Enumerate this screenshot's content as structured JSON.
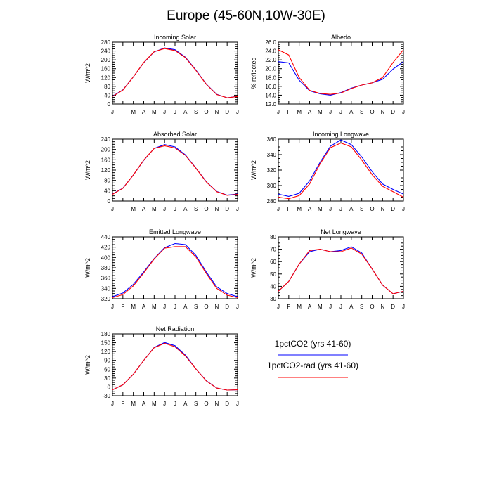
{
  "title": "Europe (45-60N,10W-30E)",
  "months": [
    "J",
    "F",
    "M",
    "A",
    "M",
    "J",
    "J",
    "A",
    "S",
    "O",
    "N",
    "D",
    "J"
  ],
  "legend": [
    {
      "label": "1pctCO2 (yrs 41-60)",
      "color": "#0000ff"
    },
    {
      "label": "1pctCO2-rad (yrs 41-60)",
      "color": "#ff0000"
    }
  ],
  "chart_data": [
    {
      "type": "line",
      "title": "Incoming Solar",
      "ylabel": "W/m^2",
      "ylim": [
        0,
        280
      ],
      "yticks": [
        "0",
        "40",
        "80",
        "120",
        "160",
        "200",
        "240",
        "280"
      ],
      "series": [
        {
          "name": "1pctCO2 (yrs 41-60)",
          "color": "#0000ff",
          "values": [
            35,
            64,
            123,
            187,
            236,
            254,
            246,
            212,
            154,
            90,
            44,
            28,
            35
          ]
        },
        {
          "name": "1pctCO2-rad (yrs 41-60)",
          "color": "#ff0000",
          "values": [
            34,
            63,
            123,
            188,
            237,
            251,
            242,
            210,
            152,
            89,
            43,
            28,
            34
          ]
        }
      ]
    },
    {
      "type": "line",
      "title": "Albedo",
      "ylabel": "% reflected",
      "ylim": [
        12,
        26
      ],
      "yticks": [
        "12.0",
        "14.0",
        "16.0",
        "18.0",
        "20.0",
        "22.0",
        "24.0",
        "26.0"
      ],
      "series": [
        {
          "name": "1pctCO2 (yrs 41-60)",
          "color": "#0000ff",
          "values": [
            21.6,
            21.3,
            17.4,
            15.0,
            14.3,
            14.0,
            14.6,
            15.6,
            16.3,
            16.8,
            17.6,
            19.9,
            21.6
          ]
        },
        {
          "name": "1pctCO2-rad (yrs 41-60)",
          "color": "#ff0000",
          "values": [
            24.3,
            23.1,
            18.0,
            15.1,
            14.4,
            14.2,
            14.5,
            15.5,
            16.3,
            16.8,
            18.0,
            21.4,
            24.3
          ]
        }
      ]
    },
    {
      "type": "line",
      "title": "Absorbed Solar",
      "ylabel": "W/m^2",
      "ylim": [
        0,
        240
      ],
      "yticks": [
        "0",
        "40",
        "80",
        "120",
        "160",
        "200",
        "240"
      ],
      "series": [
        {
          "name": "1pctCO2 (yrs 41-60)",
          "color": "#0000ff",
          "values": [
            27,
            50,
            101,
            158,
            204,
            219,
            210,
            179,
            128,
            75,
            37,
            23,
            27
          ]
        },
        {
          "name": "1pctCO2-rad (yrs 41-60)",
          "color": "#ff0000",
          "values": [
            26,
            49,
            101,
            159,
            204,
            214,
            206,
            177,
            127,
            74,
            36,
            22,
            26
          ]
        }
      ]
    },
    {
      "type": "line",
      "title": "Incoming Longwave",
      "ylabel": "W/m^2",
      "ylim": [
        280,
        360
      ],
      "yticks": [
        "280",
        "300",
        "320",
        "340",
        "360"
      ],
      "series": [
        {
          "name": "1pctCO2 (yrs 41-60)",
          "color": "#0000ff",
          "values": [
            289,
            286,
            290,
            306,
            330,
            351,
            359,
            353,
            337,
            318,
            302,
            295,
            289
          ]
        },
        {
          "name": "1pctCO2-rad (yrs 41-60)",
          "color": "#ff0000",
          "values": [
            285,
            283,
            287,
            302,
            328,
            349,
            355,
            350,
            333,
            314,
            299,
            292,
            285
          ]
        }
      ]
    },
    {
      "type": "line",
      "title": "Emitted Longwave",
      "ylabel": "W/m^2",
      "ylim": [
        320,
        440
      ],
      "yticks": [
        "320",
        "340",
        "360",
        "380",
        "400",
        "420",
        "440"
      ],
      "series": [
        {
          "name": "1pctCO2 (yrs 41-60)",
          "color": "#0000ff",
          "values": [
            324,
            331,
            348,
            372,
            398,
            419,
            427,
            425,
            404,
            372,
            343,
            330,
            324
          ]
        },
        {
          "name": "1pctCO2-rad (yrs 41-60)",
          "color": "#ff0000",
          "values": [
            322,
            328,
            345,
            370,
            397,
            418,
            421,
            421,
            401,
            369,
            340,
            327,
            322
          ]
        }
      ]
    },
    {
      "type": "line",
      "title": "Net Longwave",
      "ylabel": "W/m^2",
      "ylim": [
        30,
        80
      ],
      "yticks": [
        "30",
        "40",
        "50",
        "60",
        "70",
        "80"
      ],
      "series": [
        {
          "name": "1pctCO2 (yrs 41-60)",
          "color": "#0000ff",
          "values": [
            36,
            44,
            58,
            68,
            70,
            68,
            69,
            72,
            67,
            54,
            41,
            34,
            36
          ]
        },
        {
          "name": "1pctCO2-rad (yrs 41-60)",
          "color": "#ff0000",
          "values": [
            36,
            44,
            58,
            69,
            70,
            68,
            68,
            71,
            66,
            54,
            41,
            34,
            36
          ]
        }
      ]
    },
    {
      "type": "line",
      "title": "Net Radiation",
      "ylabel": "W/m^2",
      "ylim": [
        -30,
        180
      ],
      "yticks": [
        "-30",
        "0",
        "30",
        "60",
        "90",
        "120",
        "150",
        "180"
      ],
      "series": [
        {
          "name": "1pctCO2 (yrs 41-60)",
          "color": "#0000ff",
          "values": [
            -10,
            7,
            43,
            90,
            134,
            151,
            140,
            108,
            61,
            21,
            -4,
            -11,
            -10
          ]
        },
        {
          "name": "1pctCO2-rad (yrs 41-60)",
          "color": "#ff0000",
          "values": [
            -10,
            7,
            43,
            90,
            133,
            148,
            136,
            105,
            61,
            20,
            -4,
            -11,
            -10
          ]
        }
      ]
    }
  ]
}
